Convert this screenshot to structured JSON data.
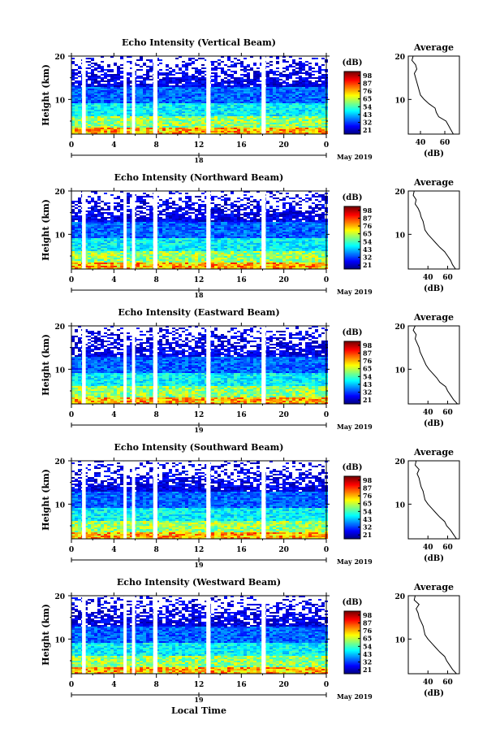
{
  "figure": {
    "x_axis_label": "Local Time",
    "date_label": "May 2019",
    "colorbar_unit": "(dB)",
    "profile_title": "Average",
    "profile_xlabel": "(dB)",
    "y_axis_label": "Height (km)"
  },
  "chart_data": [
    {
      "type": "heatmap",
      "title": "Echo Intensity (Vertical Beam)",
      "xlabel": "Local Time",
      "ylabel": "Height (km)",
      "x_ticks": [
        "0",
        "4",
        "8",
        "12",
        "16",
        "20",
        "0"
      ],
      "y_ticks": [
        "10",
        "20"
      ],
      "day_label": "18",
      "date_label": "May 2019",
      "colorbar": {
        "unit": "(dB)",
        "ticks": [
          "21",
          "32",
          "43",
          "54",
          "65",
          "76",
          "87",
          "98"
        ]
      },
      "data_gaps_hours": [
        [
          1.0,
          1.35
        ],
        [
          4.9,
          5.2
        ],
        [
          5.7,
          6.0
        ],
        [
          7.7,
          8.1
        ],
        [
          12.7,
          13.1
        ],
        [
          17.9,
          18.3
        ]
      ],
      "average_profile": {
        "title": "Average",
        "xlabel": "(dB)",
        "x_ticks": [
          "40",
          "60"
        ],
        "y_ticks": [
          "10",
          "20"
        ],
        "xlim": [
          30,
          72
        ],
        "ylim": [
          2,
          20
        ],
        "height_km": [
          2,
          3,
          4,
          5,
          6,
          7,
          8,
          9,
          10,
          11,
          12,
          13,
          14,
          15,
          16,
          17,
          18,
          19,
          20
        ],
        "db": [
          67,
          65,
          63,
          61,
          55,
          53,
          52,
          47,
          43,
          40,
          39,
          38,
          37,
          36,
          35,
          37,
          36,
          33,
          34
        ]
      }
    },
    {
      "type": "heatmap",
      "title": "Echo Intensity (Northward Beam)",
      "xlabel": "Local Time",
      "ylabel": "Height (km)",
      "x_ticks": [
        "0",
        "4",
        "8",
        "12",
        "16",
        "20",
        "0"
      ],
      "y_ticks": [
        "10",
        "20"
      ],
      "day_label": "18",
      "date_label": "May 2019",
      "colorbar": {
        "unit": "(dB)",
        "ticks": [
          "21",
          "32",
          "43",
          "54",
          "65",
          "76",
          "87",
          "98"
        ]
      },
      "data_gaps_hours": [
        [
          1.0,
          1.35
        ],
        [
          4.9,
          5.2
        ],
        [
          5.7,
          6.0
        ],
        [
          7.7,
          8.1
        ],
        [
          12.7,
          13.1
        ],
        [
          17.9,
          18.3
        ]
      ],
      "average_profile": {
        "title": "Average",
        "xlabel": "(dB)",
        "x_ticks": [
          "40",
          "60"
        ],
        "y_ticks": [
          "10",
          "20"
        ],
        "xlim": [
          20,
          72
        ],
        "ylim": [
          2,
          20
        ],
        "height_km": [
          2,
          3,
          4,
          5,
          6,
          7,
          8,
          9,
          10,
          11,
          12,
          13,
          14,
          15,
          16,
          17,
          18,
          19,
          20
        ],
        "db": [
          68,
          65,
          63,
          60,
          57,
          52,
          48,
          44,
          40,
          37,
          36,
          35,
          33,
          32,
          30,
          27,
          28,
          25,
          26
        ]
      }
    },
    {
      "type": "heatmap",
      "title": "Echo Intensity (Eastward Beam)",
      "xlabel": "Local Time",
      "ylabel": "Height (km)",
      "x_ticks": [
        "0",
        "4",
        "8",
        "12",
        "16",
        "20",
        "0"
      ],
      "y_ticks": [
        "10",
        "20"
      ],
      "day_label": "19",
      "date_label": "May 2019",
      "colorbar": {
        "unit": "(dB)",
        "ticks": [
          "21",
          "32",
          "43",
          "54",
          "65",
          "76",
          "87",
          "98"
        ]
      },
      "data_gaps_hours": [
        [
          1.0,
          1.35
        ],
        [
          4.9,
          5.2
        ],
        [
          5.7,
          6.0
        ],
        [
          7.7,
          8.1
        ],
        [
          12.7,
          13.1
        ],
        [
          17.9,
          18.3
        ]
      ],
      "average_profile": {
        "title": "Average",
        "xlabel": "(dB)",
        "x_ticks": [
          "40",
          "60"
        ],
        "y_ticks": [
          "10",
          "20"
        ],
        "xlim": [
          20,
          72
        ],
        "ylim": [
          2,
          20
        ],
        "height_km": [
          2,
          3,
          4,
          5,
          6,
          7,
          8,
          9,
          10,
          11,
          12,
          13,
          14,
          15,
          16,
          17,
          18,
          19,
          20
        ],
        "db": [
          70,
          66,
          63,
          60,
          58,
          52,
          49,
          45,
          41,
          38,
          36,
          34,
          32,
          31,
          29,
          27,
          28,
          25,
          27
        ]
      }
    },
    {
      "type": "heatmap",
      "title": "Echo Intensity (Southward Beam)",
      "xlabel": "Local Time",
      "ylabel": "Height (km)",
      "x_ticks": [
        "0",
        "4",
        "8",
        "12",
        "16",
        "20",
        "0"
      ],
      "y_ticks": [
        "10",
        "20"
      ],
      "day_label": "19",
      "date_label": "May 2019",
      "colorbar": {
        "unit": "(dB)",
        "ticks": [
          "21",
          "32",
          "43",
          "54",
          "65",
          "76",
          "87",
          "98"
        ]
      },
      "data_gaps_hours": [
        [
          1.0,
          1.35
        ],
        [
          4.9,
          5.2
        ],
        [
          5.7,
          6.0
        ],
        [
          7.7,
          8.1
        ],
        [
          12.7,
          13.1
        ],
        [
          17.9,
          18.3
        ]
      ],
      "average_profile": {
        "title": "Average",
        "xlabel": "(dB)",
        "x_ticks": [
          "40",
          "60"
        ],
        "y_ticks": [
          "10",
          "20"
        ],
        "xlim": [
          20,
          72
        ],
        "ylim": [
          2,
          20
        ],
        "height_km": [
          2,
          3,
          4,
          5,
          6,
          7,
          8,
          9,
          10,
          11,
          12,
          13,
          14,
          15,
          16,
          17,
          18,
          19,
          20
        ],
        "db": [
          69,
          66,
          63,
          59,
          57,
          52,
          48,
          44,
          40,
          37,
          36,
          35,
          33,
          32,
          31,
          29,
          31,
          27,
          28
        ]
      }
    },
    {
      "type": "heatmap",
      "title": "Echo Intensity (Westward Beam)",
      "xlabel": "Local Time",
      "ylabel": "Height (km)",
      "x_ticks": [
        "0",
        "4",
        "8",
        "12",
        "16",
        "20",
        "0"
      ],
      "y_ticks": [
        "10",
        "20"
      ],
      "day_label": "19",
      "date_label": "May 2019",
      "colorbar": {
        "unit": "(dB)",
        "ticks": [
          "21",
          "32",
          "43",
          "54",
          "65",
          "76",
          "87",
          "98"
        ]
      },
      "data_gaps_hours": [
        [
          1.0,
          1.35
        ],
        [
          4.9,
          5.2
        ],
        [
          5.7,
          6.0
        ],
        [
          7.7,
          8.1
        ],
        [
          12.7,
          13.1
        ],
        [
          17.9,
          18.3
        ]
      ],
      "average_profile": {
        "title": "Average",
        "xlabel": "(dB)",
        "x_ticks": [
          "40",
          "60"
        ],
        "y_ticks": [
          "10",
          "20"
        ],
        "xlim": [
          20,
          72
        ],
        "ylim": [
          2,
          20
        ],
        "height_km": [
          2,
          3,
          4,
          5,
          6,
          7,
          8,
          9,
          10,
          11,
          12,
          13,
          14,
          15,
          16,
          17,
          18,
          19,
          20
        ],
        "db": [
          69,
          65,
          62,
          59,
          57,
          52,
          48,
          44,
          40,
          37,
          36,
          35,
          33,
          31,
          30,
          28,
          31,
          26,
          27
        ]
      }
    }
  ]
}
